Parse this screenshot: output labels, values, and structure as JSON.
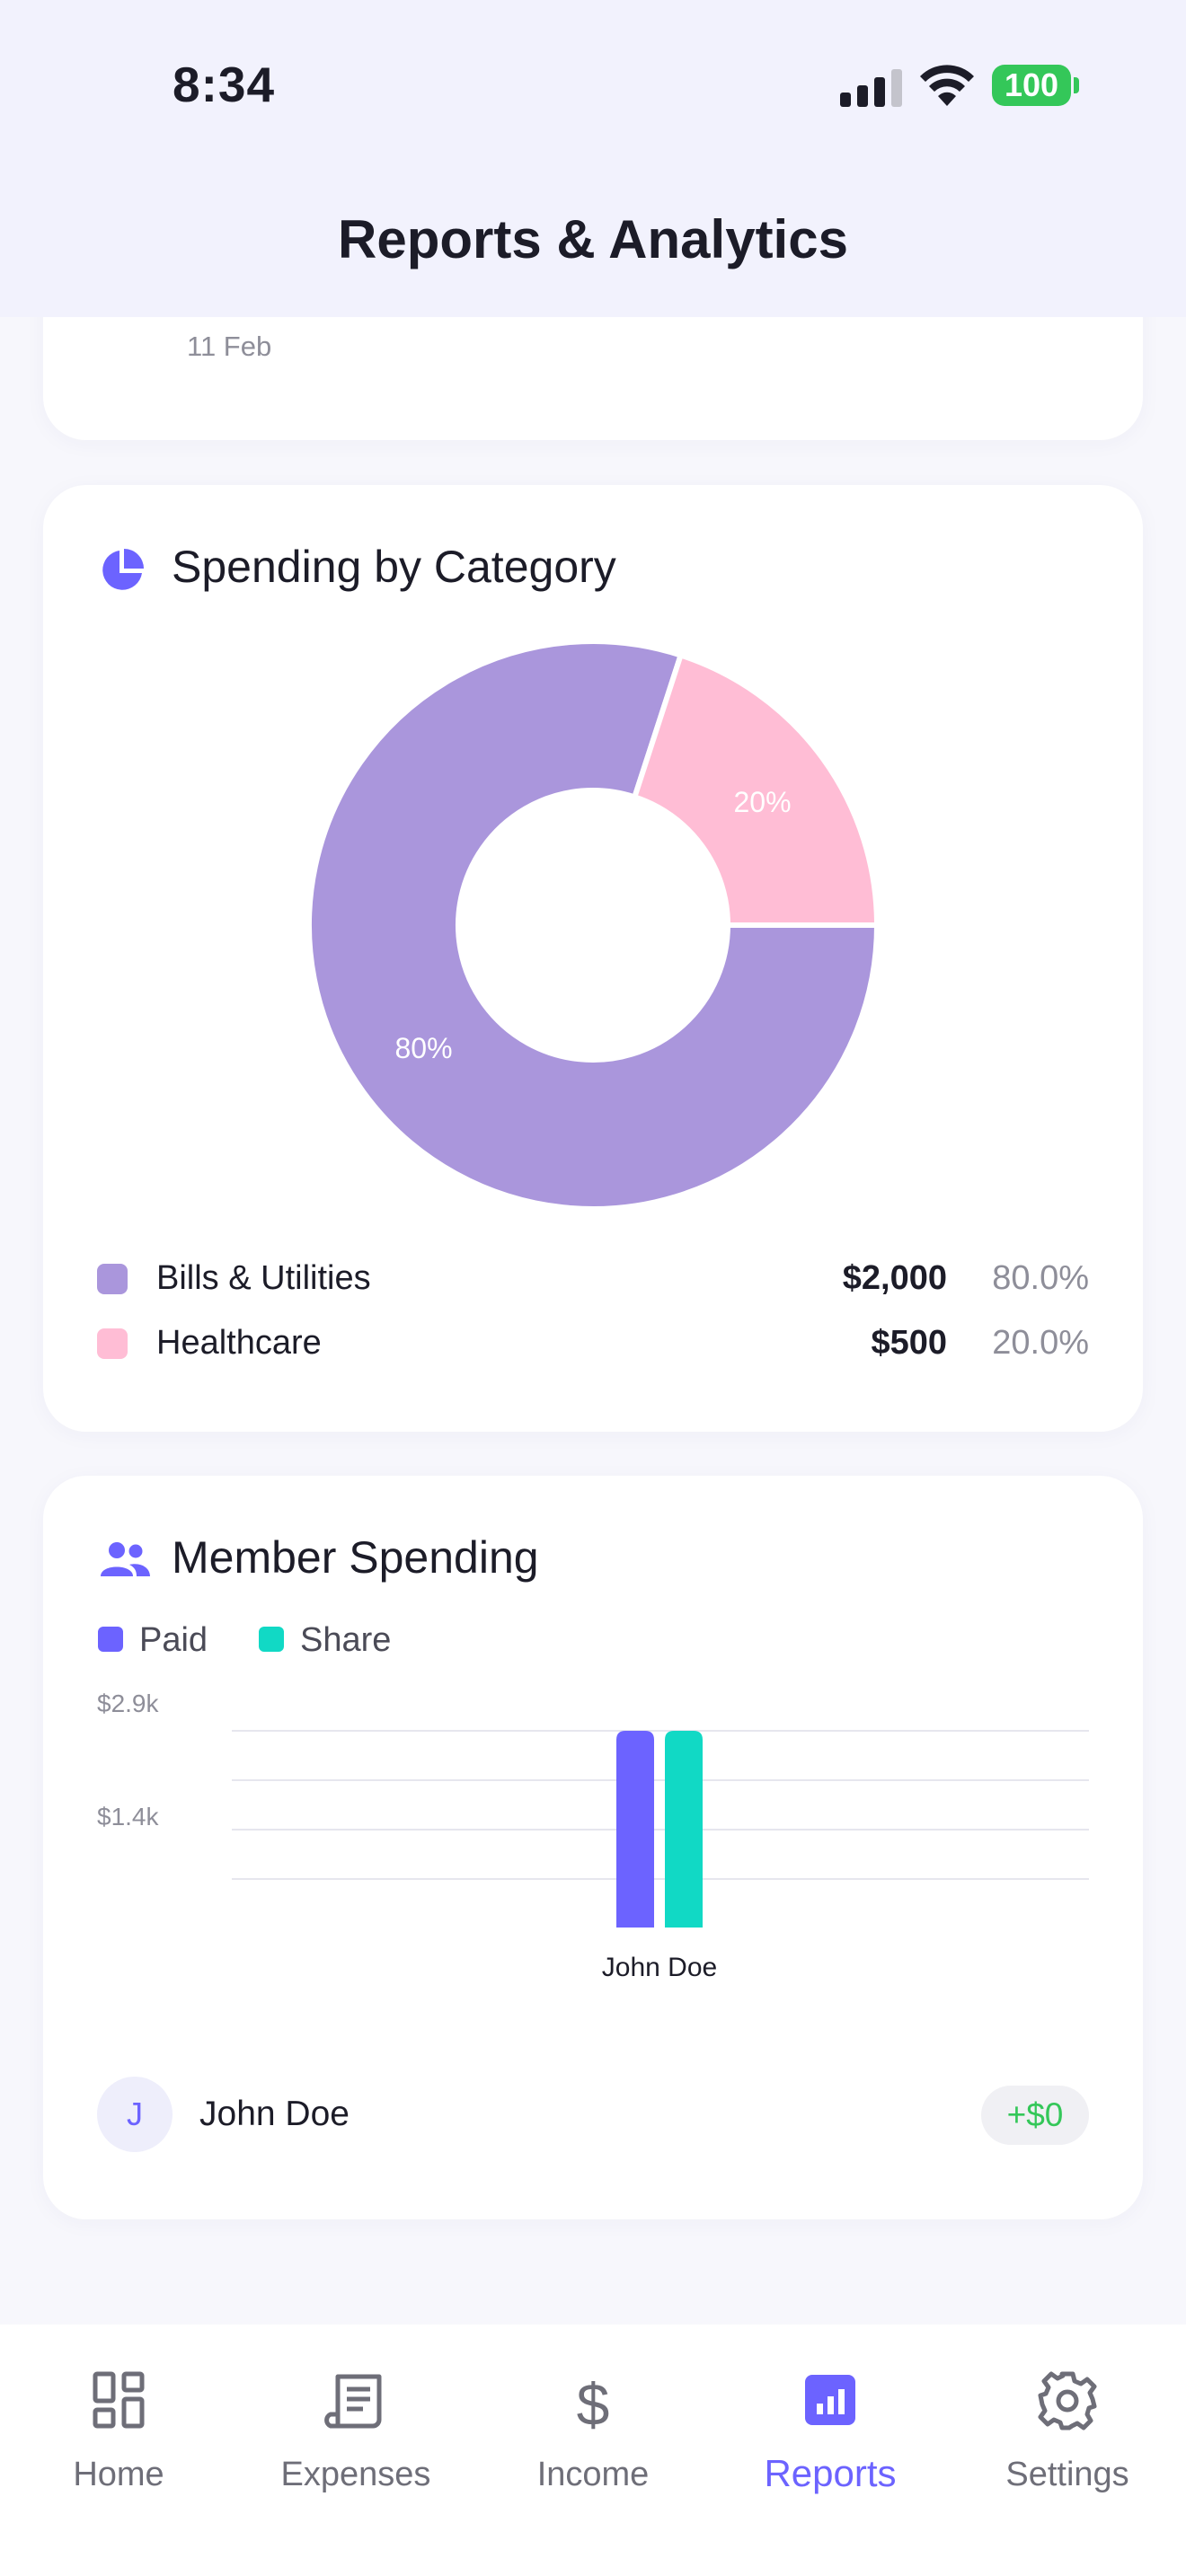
{
  "status": {
    "time": "8:34",
    "battery": "100"
  },
  "header": {
    "title": "Reports & Analytics"
  },
  "previous_card": {
    "date": "11 Feb"
  },
  "spending": {
    "title": "Spending by Category",
    "icon": "pie-chart-icon",
    "slice_labels": [
      "80%",
      "20%"
    ],
    "legend": [
      {
        "label": "Bills & Utilities",
        "amount": "$2,000",
        "pct": "80.0%",
        "color": "#aa96dc"
      },
      {
        "label": "Healthcare",
        "amount": "$500",
        "pct": "20.0%",
        "color": "#ffbdd5"
      }
    ]
  },
  "member_spending": {
    "title": "Member Spending",
    "icon": "people-icon",
    "legend": [
      {
        "label": "Paid",
        "color": "#6c63ff"
      },
      {
        "label": "Share",
        "color": "#11d9c5"
      }
    ],
    "member": {
      "initial": "J",
      "name": "John Doe",
      "balance": "+$0"
    }
  },
  "chart_data": [
    {
      "type": "pie",
      "title": "",
      "categories": [
        "Bills & Utilities",
        "Healthcare"
      ],
      "values": [
        2000,
        500
      ],
      "percentages": [
        80,
        20
      ],
      "slice_labels": [
        "80%",
        "20%"
      ],
      "colors": [
        "#aa96dc",
        "#ffbdd5"
      ],
      "donut": true
    },
    {
      "type": "bar",
      "title": "",
      "categories": [
        "John Doe"
      ],
      "series": [
        {
          "name": "Paid",
          "values": [
            2500
          ],
          "color": "#6c63ff"
        },
        {
          "name": "Share",
          "values": [
            2500
          ],
          "color": "#11d9c5"
        }
      ],
      "yticks": [
        "$2.9k",
        "$1.4k"
      ],
      "ylim": [
        0,
        2900
      ],
      "grid": true,
      "legend_placement": "top-left"
    }
  ],
  "tabs": [
    {
      "label": "Home",
      "icon": "home-grid-icon",
      "active": false
    },
    {
      "label": "Expenses",
      "icon": "receipt-icon",
      "active": false
    },
    {
      "label": "Income",
      "icon": "dollar-icon",
      "active": false
    },
    {
      "label": "Reports",
      "icon": "reports-chart-icon",
      "active": true
    },
    {
      "label": "Settings",
      "icon": "gear-icon",
      "active": false
    }
  ],
  "colors": {
    "accent": "#6c63ff",
    "positive": "#34c759"
  }
}
